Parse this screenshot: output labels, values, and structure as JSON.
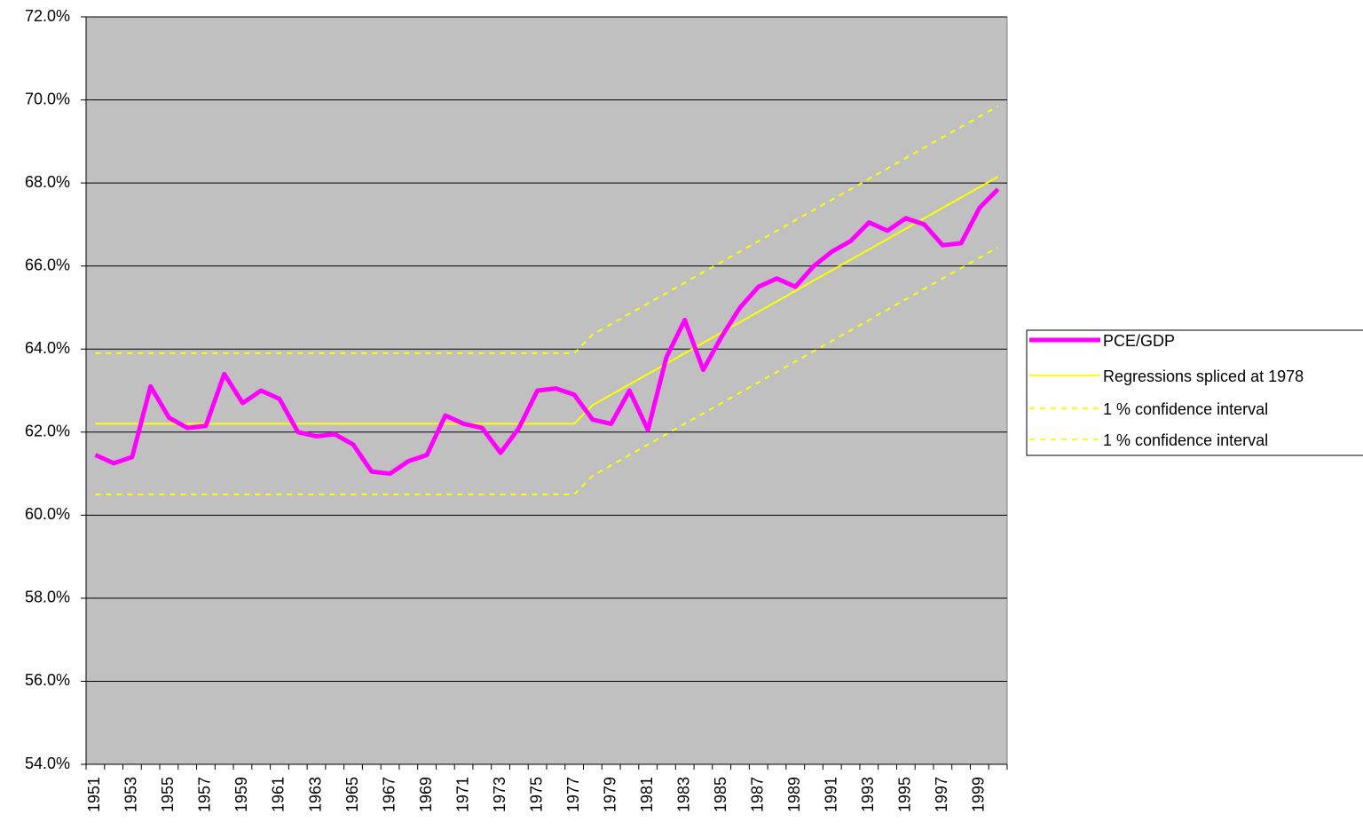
{
  "chart_data": {
    "type": "line",
    "categories": [
      "1951",
      null,
      "1953",
      null,
      "1955",
      null,
      "1957",
      null,
      "1959",
      null,
      "1961",
      null,
      "1963",
      null,
      "1965",
      null,
      "1967",
      null,
      "1969",
      null,
      "1971",
      null,
      "1973",
      null,
      "1975",
      null,
      "1977",
      null,
      "1979",
      null,
      "1981",
      null,
      "1983",
      null,
      "1985",
      null,
      "1987",
      null,
      "1989",
      null,
      "1991",
      null,
      "1993",
      null,
      "1995",
      null,
      "1997",
      null,
      "1999",
      null
    ],
    "series": [
      {
        "name": "PCE/GDP",
        "color": "#ff00ff",
        "dash": "solid",
        "width": 5,
        "values": [
          61.45,
          61.25,
          61.4,
          63.1,
          62.35,
          62.1,
          62.15,
          63.4,
          62.7,
          63.0,
          62.8,
          62.0,
          61.9,
          61.95,
          61.7,
          61.05,
          61.0,
          61.3,
          61.45,
          62.4,
          62.2,
          62.1,
          61.5,
          62.1,
          63.0,
          63.05,
          62.9,
          62.3,
          62.2,
          63.0,
          62.05,
          63.8,
          64.7,
          63.5,
          64.3,
          65.0,
          65.5,
          65.7,
          65.5,
          66.0,
          66.35,
          66.6,
          67.05,
          66.85,
          67.15,
          67.0,
          66.5,
          66.55,
          67.4,
          67.85
        ]
      },
      {
        "name": "Regressions spliced at 1978",
        "color": "#ffff00",
        "dash": "solid",
        "width": 2,
        "values": [
          62.2,
          62.2,
          62.2,
          62.2,
          62.2,
          62.2,
          62.2,
          62.2,
          62.2,
          62.2,
          62.2,
          62.2,
          62.2,
          62.2,
          62.2,
          62.2,
          62.2,
          62.2,
          62.2,
          62.2,
          62.2,
          62.2,
          62.2,
          62.2,
          62.2,
          62.2,
          62.2,
          62.65,
          62.9,
          63.15,
          63.4,
          63.65,
          63.9,
          64.15,
          64.4,
          64.65,
          64.9,
          65.15,
          65.4,
          65.65,
          65.9,
          66.15,
          66.4,
          66.65,
          66.9,
          67.15,
          67.4,
          67.65,
          67.9,
          68.15
        ]
      },
      {
        "name": "1 % confidence interval",
        "color": "#ffff00",
        "dash": "dashed",
        "width": 2,
        "values": [
          63.9,
          63.9,
          63.9,
          63.9,
          63.9,
          63.9,
          63.9,
          63.9,
          63.9,
          63.9,
          63.9,
          63.9,
          63.9,
          63.9,
          63.9,
          63.9,
          63.9,
          63.9,
          63.9,
          63.9,
          63.9,
          63.9,
          63.9,
          63.9,
          63.9,
          63.9,
          63.9,
          64.35,
          64.6,
          64.85,
          65.1,
          65.35,
          65.6,
          65.85,
          66.1,
          66.35,
          66.6,
          66.85,
          67.1,
          67.35,
          67.6,
          67.85,
          68.1,
          68.35,
          68.6,
          68.85,
          69.1,
          69.35,
          69.6,
          69.85
        ]
      },
      {
        "name": "1 % confidence interval",
        "color": "#ffff00",
        "dash": "dashed",
        "width": 2,
        "values": [
          60.5,
          60.5,
          60.5,
          60.5,
          60.5,
          60.5,
          60.5,
          60.5,
          60.5,
          60.5,
          60.5,
          60.5,
          60.5,
          60.5,
          60.5,
          60.5,
          60.5,
          60.5,
          60.5,
          60.5,
          60.5,
          60.5,
          60.5,
          60.5,
          60.5,
          60.5,
          60.5,
          60.95,
          61.2,
          61.45,
          61.7,
          61.95,
          62.2,
          62.45,
          62.7,
          62.95,
          63.2,
          63.45,
          63.7,
          63.95,
          64.2,
          64.45,
          64.7,
          64.95,
          65.2,
          65.45,
          65.7,
          65.95,
          66.2,
          66.45
        ]
      }
    ],
    "ylim": [
      54,
      72
    ],
    "yticks": [
      {
        "value": 54,
        "label": "54.0%"
      },
      {
        "value": 56,
        "label": "56.0%"
      },
      {
        "value": 58,
        "label": "58.0%"
      },
      {
        "value": 60,
        "label": "60.0%"
      },
      {
        "value": 62,
        "label": "62.0%"
      },
      {
        "value": 64,
        "label": "64.0%"
      },
      {
        "value": 66,
        "label": "66.0%"
      },
      {
        "value": 68,
        "label": "68.0%"
      },
      {
        "value": 70,
        "label": "70.0%"
      },
      {
        "value": 72,
        "label": "72.0%"
      }
    ],
    "grid": true,
    "legend": "right",
    "plot_background": "#c0c0c0"
  }
}
